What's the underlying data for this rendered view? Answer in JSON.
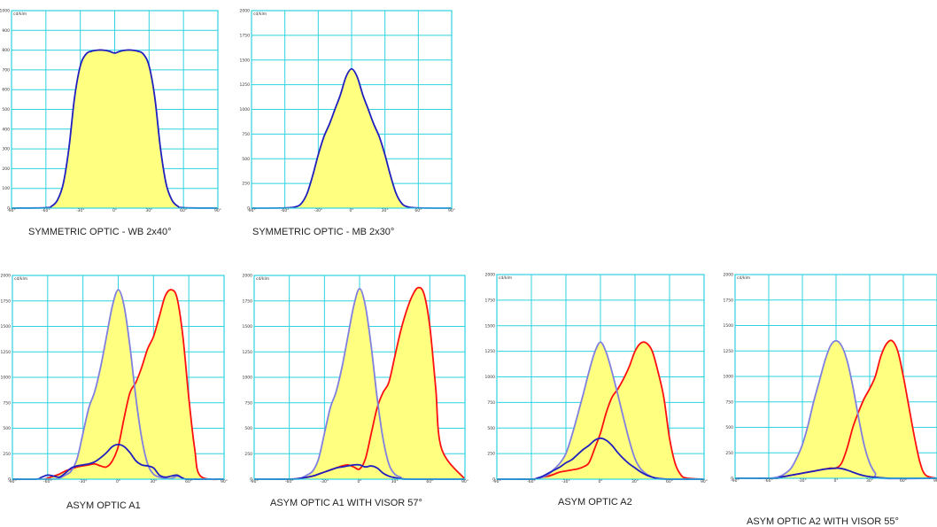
{
  "colors": {
    "fill": "#ffff80",
    "blue": "#2020c0",
    "lightblue": "#8080e0",
    "red": "#ff1010",
    "grid": "#2ed3df"
  },
  "chart_data": [
    {
      "type": "area",
      "caption": "SYMMETRIC OPTIC - WB 2x40°",
      "unit": "cd/klm",
      "ylim": [
        0,
        1000
      ],
      "yticks": [
        0,
        100,
        200,
        300,
        400,
        500,
        600,
        700,
        800,
        900,
        1000
      ],
      "xlim": [
        -90,
        90
      ],
      "xticks": [
        -90,
        -60,
        -30,
        0,
        30,
        60,
        90
      ],
      "xtick_labels": [
        "-90°",
        "-60°",
        "-30°",
        "0°",
        "30°",
        "60°",
        "90°"
      ],
      "series": [
        {
          "color": "blue",
          "fill": true,
          "x": [
            -90,
            -60,
            -55,
            -50,
            -45,
            -40,
            -35,
            -30,
            -25,
            -20,
            -15,
            -10,
            -5,
            0,
            5,
            10,
            15,
            20,
            25,
            30,
            35,
            40,
            45,
            50,
            55,
            60,
            90
          ],
          "y": [
            0,
            2,
            10,
            40,
            120,
            300,
            560,
            720,
            780,
            795,
            800,
            800,
            795,
            785,
            795,
            800,
            800,
            795,
            780,
            720,
            560,
            300,
            120,
            40,
            10,
            2,
            0
          ]
        }
      ]
    },
    {
      "type": "area",
      "caption": "SYMMETRIC OPTIC - MB 2x30°",
      "unit": "cd/klm",
      "ylim": [
        0,
        2000
      ],
      "yticks": [
        0,
        250,
        500,
        750,
        1000,
        1250,
        1500,
        1750,
        2000
      ],
      "xlim": [
        -90,
        90
      ],
      "xticks": [
        -90,
        -60,
        -30,
        0,
        30,
        60,
        90
      ],
      "xtick_labels": [
        "-90°",
        "-60°",
        "-30°",
        "0°",
        "30°",
        "60°",
        "90°"
      ],
      "series": [
        {
          "color": "blue",
          "fill": true,
          "x": [
            -90,
            -60,
            -50,
            -45,
            -40,
            -35,
            -30,
            -25,
            -20,
            -15,
            -10,
            -5,
            0,
            5,
            10,
            15,
            20,
            25,
            30,
            35,
            40,
            45,
            50,
            60,
            90
          ],
          "y": [
            0,
            2,
            15,
            50,
            150,
            330,
            540,
            720,
            850,
            1000,
            1150,
            1330,
            1410,
            1330,
            1150,
            1000,
            850,
            720,
            540,
            330,
            150,
            50,
            15,
            2,
            0
          ]
        }
      ]
    },
    {
      "type": "area",
      "caption": "ASYM OPTIC A1",
      "unit": "cd/klm",
      "ylim": [
        0,
        2000
      ],
      "yticks": [
        0,
        250,
        500,
        750,
        1000,
        1250,
        1500,
        1750,
        2000
      ],
      "xlim": [
        -90,
        90
      ],
      "xticks": [
        -90,
        -60,
        -30,
        0,
        30,
        60,
        90
      ],
      "xtick_labels": [
        "-90°",
        "-60°",
        "-30°",
        "0°",
        "30°",
        "60°",
        "90°"
      ],
      "series": [
        {
          "color": "red",
          "fill": true,
          "x": [
            -90,
            -65,
            -60,
            -55,
            -50,
            -45,
            -40,
            -35,
            -30,
            -25,
            -20,
            -15,
            -10,
            -5,
            0,
            5,
            10,
            15,
            20,
            25,
            30,
            35,
            40,
            45,
            50,
            55,
            60,
            65,
            70,
            90
          ],
          "y": [
            0,
            0,
            10,
            30,
            50,
            80,
            100,
            120,
            130,
            140,
            150,
            130,
            120,
            180,
            320,
            600,
            850,
            950,
            1100,
            1280,
            1400,
            1600,
            1800,
            1860,
            1780,
            1400,
            800,
            300,
            30,
            0
          ]
        },
        {
          "color": "lightblue",
          "fill": true,
          "x": [
            -90,
            -55,
            -50,
            -45,
            -40,
            -35,
            -30,
            -25,
            -20,
            -15,
            -10,
            -5,
            0,
            5,
            10,
            15,
            20,
            25,
            30,
            35,
            40,
            45,
            50,
            55,
            60,
            90
          ],
          "y": [
            0,
            0,
            10,
            40,
            80,
            200,
            450,
            700,
            860,
            1100,
            1400,
            1700,
            1860,
            1700,
            1300,
            800,
            400,
            150,
            50,
            20,
            10,
            5,
            30,
            10,
            0,
            0
          ]
        },
        {
          "color": "blue",
          "fill": false,
          "x": [
            -90,
            -70,
            -65,
            -60,
            -55,
            -50,
            -45,
            -40,
            -35,
            -30,
            -25,
            -20,
            -15,
            -10,
            -5,
            0,
            5,
            10,
            15,
            20,
            25,
            30,
            35,
            40,
            45,
            50,
            55,
            60,
            90
          ],
          "y": [
            0,
            0,
            20,
            40,
            30,
            20,
            60,
            110,
            130,
            140,
            150,
            170,
            210,
            260,
            320,
            340,
            320,
            260,
            180,
            140,
            130,
            110,
            40,
            20,
            30,
            40,
            10,
            0,
            0
          ]
        }
      ]
    },
    {
      "type": "area",
      "caption": "ASYM OPTIC A1 WITH VISOR 57°",
      "unit": "cd/klm",
      "ylim": [
        0,
        2000
      ],
      "yticks": [
        0,
        250,
        500,
        750,
        1000,
        1250,
        1500,
        1750,
        2000
      ],
      "xlim": [
        -90,
        90
      ],
      "xticks": [
        -90,
        -60,
        -30,
        0,
        30,
        60,
        90
      ],
      "xtick_labels": [
        "-90°",
        "-60°",
        "-30°",
        "0°",
        "30°",
        "60°",
        "90°"
      ],
      "series": [
        {
          "color": "red",
          "fill": true,
          "x": [
            -90,
            -60,
            -50,
            -40,
            -35,
            -30,
            -25,
            -20,
            -15,
            -10,
            -5,
            0,
            5,
            10,
            15,
            20,
            25,
            30,
            35,
            40,
            45,
            50,
            55,
            60,
            65,
            70,
            90
          ],
          "y": [
            0,
            0,
            10,
            30,
            50,
            70,
            90,
            110,
            130,
            140,
            120,
            100,
            200,
            450,
            700,
            850,
            950,
            1200,
            1450,
            1650,
            1800,
            1880,
            1820,
            1500,
            900,
            300,
            0
          ]
        },
        {
          "color": "lightblue",
          "fill": true,
          "x": [
            -90,
            -55,
            -50,
            -45,
            -40,
            -35,
            -30,
            -25,
            -20,
            -15,
            -10,
            -5,
            0,
            5,
            10,
            15,
            20,
            25,
            30,
            35,
            40,
            90
          ],
          "y": [
            0,
            0,
            10,
            40,
            80,
            200,
            450,
            700,
            860,
            1100,
            1400,
            1700,
            1870,
            1700,
            1300,
            800,
            400,
            150,
            50,
            20,
            0,
            0
          ]
        },
        {
          "color": "blue",
          "fill": false,
          "x": [
            -90,
            -60,
            -50,
            -40,
            -35,
            -30,
            -25,
            -20,
            -15,
            -10,
            -5,
            0,
            5,
            10,
            15,
            20,
            25,
            30,
            35,
            40,
            45,
            90
          ],
          "y": [
            0,
            0,
            10,
            30,
            50,
            70,
            90,
            110,
            120,
            130,
            140,
            140,
            120,
            130,
            110,
            60,
            30,
            15,
            5,
            0,
            0,
            0
          ]
        }
      ]
    },
    {
      "type": "area",
      "caption": "ASYM OPTIC A2",
      "unit": "cd/klm",
      "ylim": [
        0,
        2000
      ],
      "yticks": [
        0,
        250,
        500,
        750,
        1000,
        1250,
        1500,
        1750,
        2000
      ],
      "xlim": [
        -90,
        90
      ],
      "xticks": [
        -90,
        -60,
        -30,
        0,
        30,
        60,
        90
      ],
      "xtick_labels": [
        "-90°",
        "-60°",
        "-30°",
        "0°",
        "30°",
        "60°",
        "90°"
      ],
      "series": [
        {
          "color": "red",
          "fill": true,
          "x": [
            -90,
            -60,
            -55,
            -50,
            -45,
            -40,
            -35,
            -30,
            -25,
            -20,
            -15,
            -10,
            -5,
            0,
            5,
            10,
            15,
            20,
            25,
            30,
            35,
            40,
            45,
            50,
            55,
            60,
            65,
            70,
            75,
            90
          ],
          "y": [
            0,
            0,
            10,
            20,
            30,
            50,
            70,
            80,
            90,
            100,
            120,
            160,
            300,
            450,
            650,
            800,
            880,
            980,
            1100,
            1250,
            1330,
            1330,
            1250,
            1050,
            800,
            400,
            150,
            40,
            10,
            0
          ]
        },
        {
          "color": "lightblue",
          "fill": true,
          "x": [
            -90,
            -60,
            -50,
            -45,
            -40,
            -35,
            -30,
            -25,
            -20,
            -15,
            -10,
            -5,
            0,
            5,
            10,
            15,
            20,
            25,
            30,
            35,
            40,
            45,
            50,
            60,
            90
          ],
          "y": [
            0,
            0,
            20,
            50,
            100,
            160,
            250,
            420,
            620,
            830,
            1050,
            1240,
            1340,
            1240,
            1050,
            830,
            600,
            380,
            200,
            100,
            50,
            20,
            10,
            0,
            0
          ]
        },
        {
          "color": "blue",
          "fill": false,
          "x": [
            -90,
            -60,
            -55,
            -50,
            -45,
            -40,
            -35,
            -30,
            -25,
            -20,
            -15,
            -10,
            -5,
            0,
            5,
            10,
            15,
            20,
            25,
            30,
            35,
            40,
            45,
            50,
            60,
            90
          ],
          "y": [
            0,
            0,
            10,
            30,
            60,
            90,
            120,
            160,
            190,
            240,
            290,
            330,
            380,
            400,
            380,
            330,
            260,
            200,
            150,
            110,
            70,
            40,
            20,
            5,
            0,
            0
          ]
        }
      ]
    },
    {
      "type": "area",
      "caption": "ASYM OPTIC A2 WITH VISOR 55°",
      "unit": "cd/klm",
      "ylim": [
        0,
        2000
      ],
      "yticks": [
        0,
        250,
        500,
        750,
        1000,
        1250,
        1500,
        1750,
        2000
      ],
      "xlim": [
        -90,
        90
      ],
      "xticks": [
        -90,
        -60,
        -30,
        0,
        30,
        60,
        90
      ],
      "xtick_labels": [
        "-90°",
        "-60°",
        "-30°",
        "0°",
        "30°",
        "60°",
        "90°"
      ],
      "series": [
        {
          "color": "red",
          "fill": true,
          "x": [
            -90,
            -55,
            -50,
            -45,
            -40,
            -35,
            -30,
            -25,
            -20,
            -15,
            -10,
            -5,
            0,
            5,
            10,
            15,
            20,
            25,
            30,
            35,
            40,
            45,
            50,
            55,
            60,
            65,
            70,
            75,
            80,
            90
          ],
          "y": [
            0,
            0,
            10,
            20,
            30,
            40,
            50,
            60,
            70,
            80,
            90,
            100,
            100,
            150,
            300,
            500,
            650,
            780,
            880,
            1000,
            1200,
            1320,
            1350,
            1250,
            1000,
            700,
            400,
            150,
            30,
            0
          ]
        },
        {
          "color": "lightblue",
          "fill": true,
          "x": [
            -90,
            -60,
            -50,
            -45,
            -40,
            -35,
            -30,
            -25,
            -20,
            -15,
            -10,
            -5,
            0,
            5,
            10,
            15,
            20,
            25,
            30,
            35,
            40,
            90
          ],
          "y": [
            0,
            0,
            20,
            50,
            100,
            200,
            330,
            520,
            750,
            950,
            1150,
            1300,
            1350,
            1300,
            1150,
            900,
            600,
            330,
            150,
            50,
            0,
            0
          ]
        },
        {
          "color": "blue",
          "fill": false,
          "x": [
            -90,
            -55,
            -50,
            -45,
            -40,
            -35,
            -30,
            -25,
            -20,
            -15,
            -10,
            -5,
            0,
            5,
            10,
            15,
            20,
            25,
            30,
            35,
            40,
            45,
            50,
            90
          ],
          "y": [
            0,
            0,
            10,
            20,
            30,
            40,
            50,
            60,
            70,
            80,
            90,
            95,
            100,
            95,
            80,
            60,
            40,
            25,
            15,
            10,
            5,
            2,
            0,
            0
          ]
        }
      ]
    }
  ]
}
